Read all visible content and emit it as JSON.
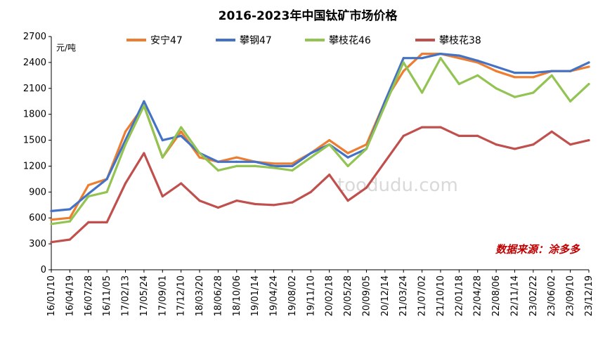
{
  "chart_data": {
    "type": "line",
    "title": "2016-2023年中国钛矿市场价格",
    "ylabel": "元/吨",
    "xlabel": "",
    "ylim": [
      0,
      2700
    ],
    "yticks": [
      0,
      300,
      600,
      900,
      1200,
      1500,
      1800,
      2100,
      2400,
      2700
    ],
    "x_tick_labels": [
      "16/01/10",
      "16/04/19",
      "16/07/28",
      "16/11/05",
      "17/02/13",
      "17/05/24",
      "17/09/01",
      "17/12/10",
      "18/03/20",
      "18/06/28",
      "18/10/06",
      "19/01/14",
      "19/04/24",
      "19/08/02",
      "19/11/10",
      "20/02/18",
      "20/05/28",
      "20/09/05",
      "20/12/14",
      "21/03/24",
      "21/07/02",
      "21/10/10",
      "22/01/18",
      "22/04/28",
      "22/08/06",
      "22/11/14",
      "23/02/22",
      "23/06/02",
      "23/09/10",
      "23/12/19"
    ],
    "x": [
      "16/01/10",
      "16/04/19",
      "16/07/28",
      "16/11/05",
      "17/02/13",
      "17/05/24",
      "17/09/01",
      "17/12/10",
      "18/03/20",
      "18/06/28",
      "18/10/06",
      "19/01/14",
      "19/04/24",
      "19/08/02",
      "19/11/10",
      "20/02/18",
      "20/05/28",
      "20/09/05",
      "20/12/14",
      "21/03/24",
      "21/07/02",
      "21/10/10",
      "22/01/18",
      "22/04/28",
      "22/08/06",
      "22/11/14",
      "23/02/22",
      "23/06/02",
      "23/09/10",
      "23/12/19"
    ],
    "series": [
      {
        "name": "安宁47",
        "color": "#ED7D31",
        "values": [
          580,
          600,
          980,
          1050,
          1600,
          1900,
          1300,
          1600,
          1300,
          1250,
          1300,
          1250,
          1230,
          1230,
          1350,
          1500,
          1350,
          1450,
          1950,
          2300,
          2500,
          2500,
          2450,
          2400,
          2300,
          2230,
          2230,
          2300,
          2300,
          2350
        ]
      },
      {
        "name": "攀钢47",
        "color": "#4472C4",
        "values": [
          680,
          700,
          880,
          1050,
          1500,
          1950,
          1500,
          1550,
          1350,
          1250,
          1250,
          1250,
          1200,
          1200,
          1350,
          1450,
          1300,
          1400,
          1950,
          2450,
          2450,
          2500,
          2480,
          2420,
          2350,
          2280,
          2280,
          2300,
          2300,
          2400
        ]
      },
      {
        "name": "攀枝花46",
        "color": "#92C353",
        "values": [
          530,
          560,
          850,
          900,
          1450,
          1900,
          1300,
          1650,
          1350,
          1150,
          1200,
          1200,
          1180,
          1150,
          1300,
          1450,
          1200,
          1400,
          1900,
          2400,
          2050,
          2450,
          2150,
          2250,
          2100,
          2000,
          2050,
          2250,
          1950,
          2150
        ]
      },
      {
        "name": "攀枝花38",
        "color": "#C0504D",
        "values": [
          320,
          350,
          550,
          550,
          1000,
          1350,
          850,
          1000,
          800,
          720,
          800,
          760,
          750,
          780,
          900,
          1100,
          800,
          950,
          1250,
          1550,
          1650,
          1650,
          1550,
          1550,
          1450,
          1400,
          1450,
          1600,
          1450,
          1500
        ]
      }
    ],
    "legend_position": "top",
    "grid": false,
    "annotation": "数据来源：涂多多",
    "watermark": "toodudu.com"
  }
}
